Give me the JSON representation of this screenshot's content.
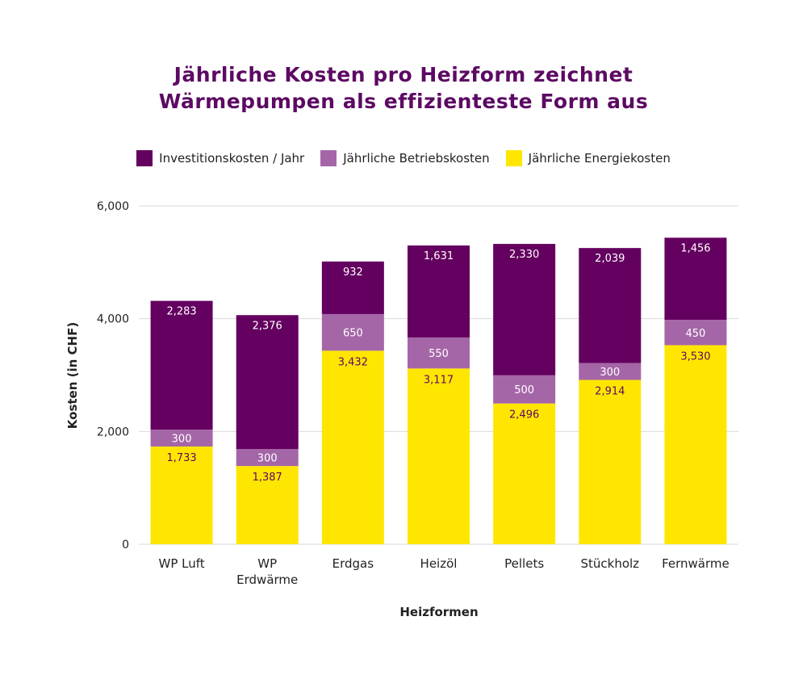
{
  "title_lines": [
    "Jährliche Kosten pro Heizform zeichnet",
    "Wärmepumpen als effizienteste Form aus"
  ],
  "colors": {
    "energie": "#ffe600",
    "betrieb": "#a566a8",
    "invest": "#64005f",
    "title": "#5c0a63"
  },
  "chart_data": {
    "type": "bar",
    "stacked": true,
    "title": "Jährliche Kosten pro Heizform zeichnet Wärmepumpen als effizienteste Form aus",
    "xlabel": "Heizformen",
    "ylabel": "Kosten (in CHF)",
    "ylim": [
      0,
      6000
    ],
    "yticks": [
      0,
      2000,
      4000,
      6000
    ],
    "ytick_labels": [
      "0",
      "2,000",
      "4,000",
      "6,000"
    ],
    "grid": true,
    "legend_position": "top",
    "categories": [
      [
        "WP Luft"
      ],
      [
        "WP",
        "Erdwärme"
      ],
      [
        "Erdgas"
      ],
      [
        "Heizöl"
      ],
      [
        "Pellets"
      ],
      [
        "Stückholz"
      ],
      [
        "Fernwärme"
      ]
    ],
    "series": [
      {
        "name": "Jährliche Energiekosten",
        "color": "#ffe600",
        "label_color": "#5c0a63",
        "values": [
          1733,
          1387,
          3432,
          3117,
          2496,
          2914,
          3530
        ],
        "labels": [
          "1,733",
          "1,387",
          "3,432",
          "3,117",
          "2,496",
          "2,914",
          "3,530"
        ]
      },
      {
        "name": "Jährliche Betriebskosten",
        "color": "#a566a8",
        "label_color": "#ffffff",
        "values": [
          300,
          300,
          650,
          550,
          500,
          300,
          450
        ],
        "labels": [
          "300",
          "300",
          "650",
          "550",
          "500",
          "300",
          "450"
        ]
      },
      {
        "name": "Investitionskosten / Jahr",
        "color": "#64005f",
        "label_color": "#ffffff",
        "values": [
          2283,
          2376,
          932,
          1631,
          2330,
          2039,
          1456
        ],
        "labels": [
          "2,283",
          "2,376",
          "932",
          "1,631",
          "2,330",
          "2,039",
          "1,456"
        ]
      }
    ],
    "legend_order": [
      2,
      1,
      0
    ]
  }
}
